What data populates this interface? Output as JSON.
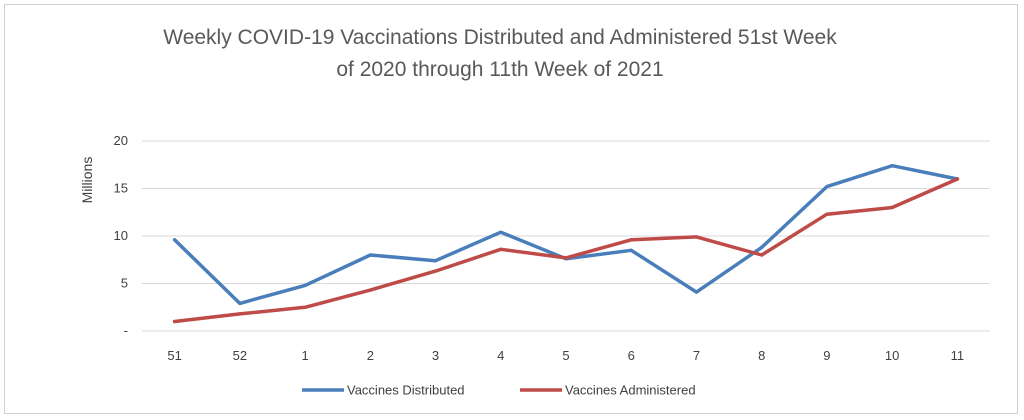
{
  "chart_data": {
    "type": "line",
    "title_lines": [
      "Weekly COVID-19 Vaccinations Distributed and Administered 51st Week",
      "of 2020 through 11th Week of 2021"
    ],
    "ylabel": "Millions",
    "xlabel": "",
    "categories": [
      "51",
      "52",
      "1",
      "2",
      "3",
      "4",
      "5",
      "6",
      "7",
      "8",
      "9",
      "10",
      "11"
    ],
    "ylim": [
      0,
      20
    ],
    "yticks": [
      {
        "value": 0,
        "label": "-"
      },
      {
        "value": 5,
        "label": "5"
      },
      {
        "value": 10,
        "label": "10"
      },
      {
        "value": 15,
        "label": "15"
      },
      {
        "value": 20,
        "label": "20"
      }
    ],
    "grid": true,
    "legend_position": "bottom",
    "series": [
      {
        "name": "Vaccines Distributed",
        "color": "#4a7ebb",
        "values": [
          9.6,
          2.9,
          4.8,
          8.0,
          7.4,
          10.4,
          7.6,
          8.5,
          4.1,
          8.8,
          15.2,
          17.4,
          16.0
        ]
      },
      {
        "name": "Vaccines Administered",
        "color": "#be4b48",
        "values": [
          1.0,
          1.8,
          2.5,
          4.3,
          6.3,
          8.6,
          7.7,
          9.6,
          9.9,
          8.0,
          12.3,
          13.0,
          16.0
        ]
      }
    ]
  }
}
